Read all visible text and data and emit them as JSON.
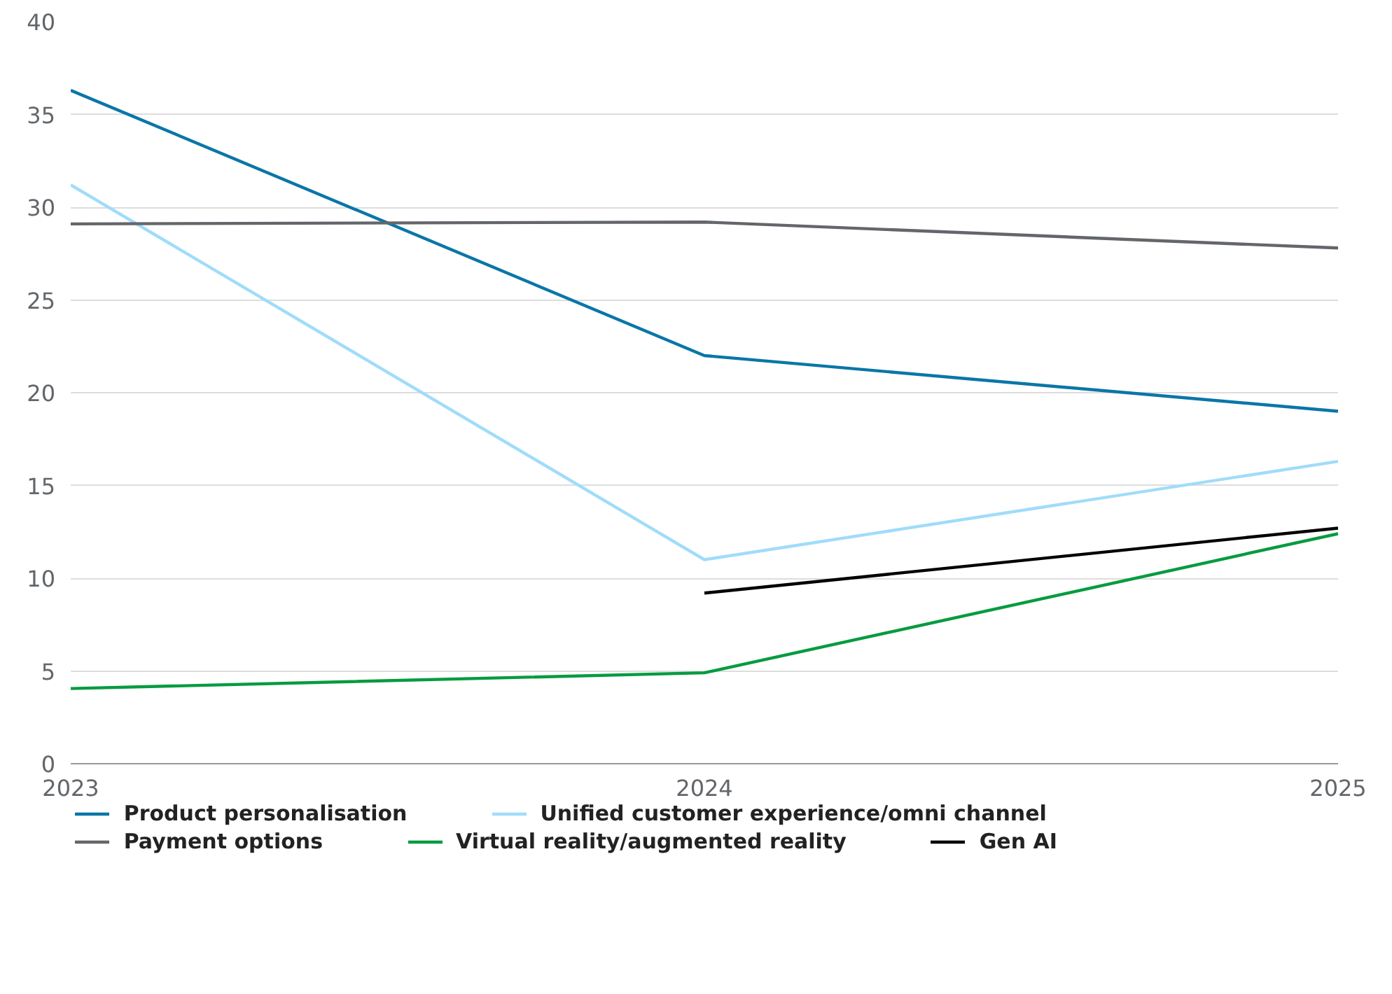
{
  "chart_data": {
    "type": "line",
    "categories": [
      "2023",
      "2024",
      "2025"
    ],
    "series": [
      {
        "name": "Product personalisation",
        "color": "#0a76a8",
        "values": [
          36.3,
          22.0,
          19.0
        ]
      },
      {
        "name": "Unified customer experience/omni channel",
        "color": "#a0dcfa",
        "values": [
          31.2,
          11.0,
          16.3
        ]
      },
      {
        "name": "Payment options",
        "color": "#63666a",
        "values": [
          29.1,
          29.2,
          27.8
        ]
      },
      {
        "name": "Virtual reality/augmented reality",
        "color": "#079b41",
        "values": [
          4.05,
          4.9,
          12.4
        ]
      },
      {
        "name": "Gen AI",
        "color": "#000000",
        "values": [
          null,
          9.2,
          12.7
        ]
      }
    ],
    "ylim": [
      0,
      40
    ],
    "yticks": [
      0,
      5,
      10,
      15,
      20,
      25,
      30,
      35,
      40
    ],
    "grid": "y",
    "legend": "bottom",
    "marker": "none",
    "line_style": "solid"
  }
}
